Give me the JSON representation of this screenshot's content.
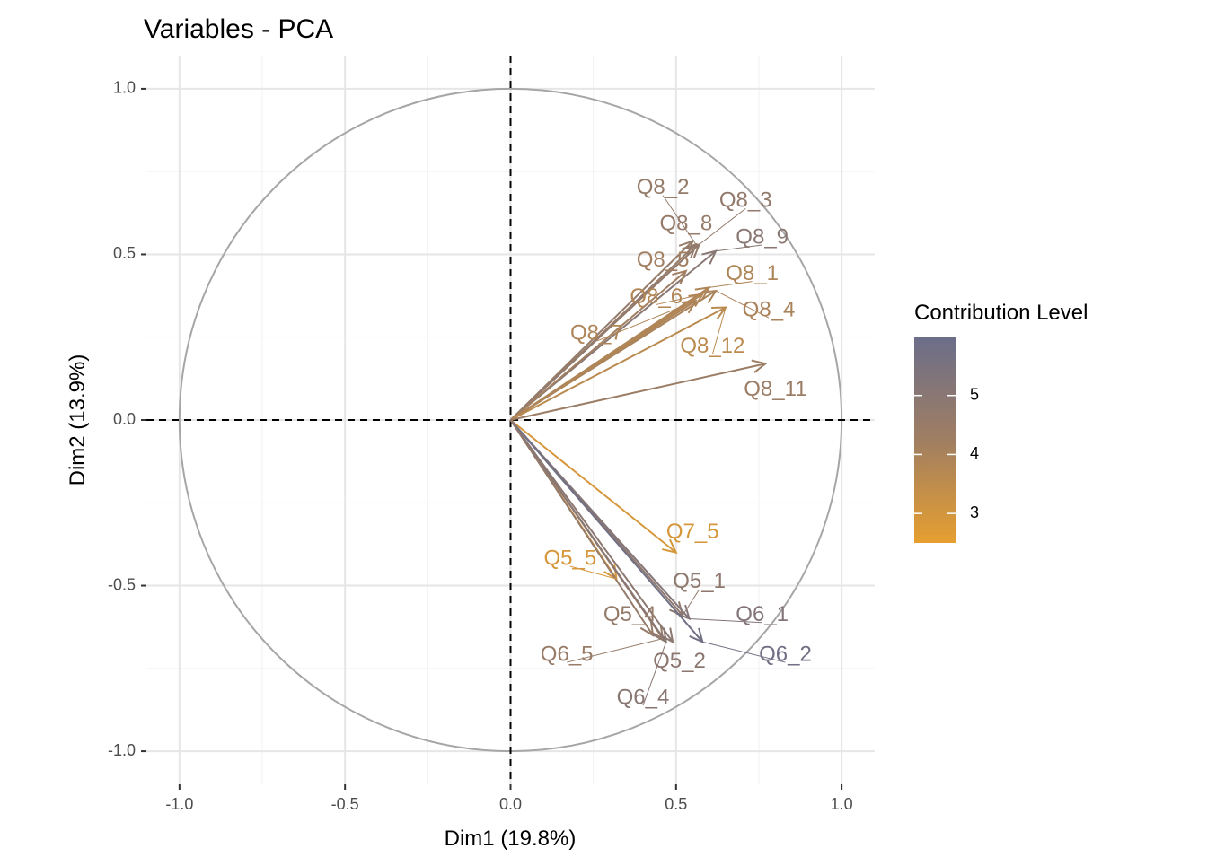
{
  "chart_data": {
    "type": "scatter",
    "subtype": "pca-variable-correlation-circle",
    "title": "Variables - PCA",
    "xlabel": "Dim1 (19.8%)",
    "ylabel": "Dim2 (13.9%)",
    "xlim": [
      -1.1,
      1.1
    ],
    "ylim": [
      -1.1,
      1.1
    ],
    "x_ticks": [
      -1.0,
      -0.5,
      0.0,
      0.5,
      1.0
    ],
    "x_tick_labels": [
      "-1.0",
      "-0.5",
      "0.0",
      "0.5",
      "1.0"
    ],
    "y_ticks": [
      -1.0,
      -0.5,
      0.0,
      0.5,
      1.0
    ],
    "y_tick_labels": [
      "-1.0",
      "-0.5",
      "0.0",
      "0.5",
      "1.0"
    ],
    "grid": true,
    "unit_circle": true,
    "reference_lines": {
      "x": 0,
      "y": 0,
      "style": "dashed"
    },
    "legend": {
      "title": "Contribution Level",
      "position": "right",
      "type": "colorbar",
      "min": 2.5,
      "max": 6.0,
      "ticks": [
        3,
        4,
        5
      ],
      "tick_labels": [
        "3",
        "4",
        "5"
      ],
      "low_color": "#e69f30",
      "high_color": "#6b6e8a"
    },
    "variables": [
      {
        "name": "Q8_2",
        "x": 0.56,
        "y": 0.53,
        "contrib": 4.6,
        "label_x": 0.46,
        "label_y": 0.7
      },
      {
        "name": "Q8_8",
        "x": 0.55,
        "y": 0.54,
        "contrib": 4.6,
        "label_x": 0.53,
        "label_y": 0.59
      },
      {
        "name": "Q8_3",
        "x": 0.57,
        "y": 0.53,
        "contrib": 4.7,
        "label_x": 0.71,
        "label_y": 0.66
      },
      {
        "name": "Q8_9",
        "x": 0.62,
        "y": 0.51,
        "contrib": 5.0,
        "label_x": 0.76,
        "label_y": 0.55
      },
      {
        "name": "Q8_5",
        "x": 0.53,
        "y": 0.45,
        "contrib": 4.2,
        "label_x": 0.46,
        "label_y": 0.48
      },
      {
        "name": "Q8_1",
        "x": 0.6,
        "y": 0.4,
        "contrib": 3.9,
        "label_x": 0.73,
        "label_y": 0.44
      },
      {
        "name": "Q8_6",
        "x": 0.58,
        "y": 0.38,
        "contrib": 3.8,
        "label_x": 0.44,
        "label_y": 0.37
      },
      {
        "name": "Q8_4",
        "x": 0.62,
        "y": 0.39,
        "contrib": 4.0,
        "label_x": 0.78,
        "label_y": 0.33
      },
      {
        "name": "Q8_7",
        "x": 0.56,
        "y": 0.36,
        "contrib": 3.9,
        "label_x": 0.26,
        "label_y": 0.26
      },
      {
        "name": "Q8_12",
        "x": 0.65,
        "y": 0.34,
        "contrib": 3.6,
        "label_x": 0.61,
        "label_y": 0.22
      },
      {
        "name": "Q8_11",
        "x": 0.77,
        "y": 0.17,
        "contrib": 4.4,
        "label_x": 0.8,
        "label_y": 0.09
      },
      {
        "name": "Q7_5",
        "x": 0.5,
        "y": -0.4,
        "contrib": 2.9,
        "label_x": 0.55,
        "label_y": -0.34
      },
      {
        "name": "Q5_5",
        "x": 0.32,
        "y": -0.48,
        "contrib": 2.9,
        "label_x": 0.18,
        "label_y": -0.42
      },
      {
        "name": "Q5_1",
        "x": 0.52,
        "y": -0.59,
        "contrib": 4.8,
        "label_x": 0.57,
        "label_y": -0.49
      },
      {
        "name": "Q6_1",
        "x": 0.54,
        "y": -0.6,
        "contrib": 5.2,
        "label_x": 0.76,
        "label_y": -0.59
      },
      {
        "name": "Q5_4",
        "x": 0.43,
        "y": -0.65,
        "contrib": 4.6,
        "label_x": 0.36,
        "label_y": -0.59
      },
      {
        "name": "Q6_2",
        "x": 0.58,
        "y": -0.67,
        "contrib": 5.8,
        "label_x": 0.83,
        "label_y": -0.71
      },
      {
        "name": "Q6_5",
        "x": 0.46,
        "y": -0.66,
        "contrib": 4.5,
        "label_x": 0.17,
        "label_y": -0.71
      },
      {
        "name": "Q5_2",
        "x": 0.49,
        "y": -0.67,
        "contrib": 4.9,
        "label_x": 0.51,
        "label_y": -0.73
      },
      {
        "name": "Q6_4",
        "x": 0.47,
        "y": -0.67,
        "contrib": 5.0,
        "label_x": 0.4,
        "label_y": -0.84
      }
    ]
  }
}
